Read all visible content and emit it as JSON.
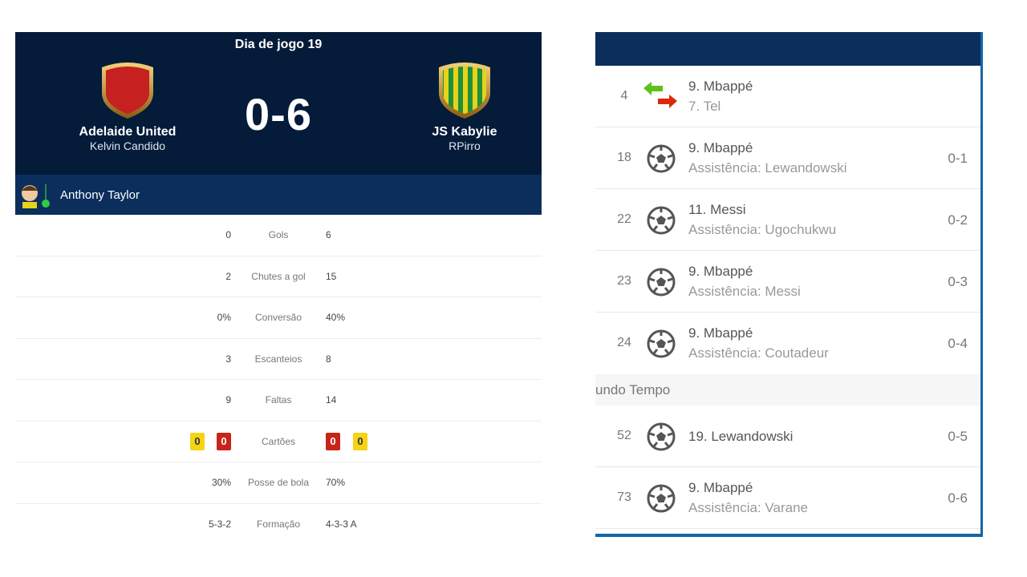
{
  "header": {
    "matchday": "Dia de jogo  19",
    "score": "0-6",
    "home": {
      "name": "Adelaide United",
      "manager": "Kelvin Candido",
      "crest_color": "#c62020"
    },
    "away": {
      "name": "JS Kabylie",
      "manager": "RPirro",
      "crest_colors": [
        "#e6d31a",
        "#1f8f3a"
      ]
    }
  },
  "referee": {
    "name": "Anthony Taylor"
  },
  "stats": [
    {
      "home": "0",
      "label": "Gols",
      "away": "6"
    },
    {
      "home": "2",
      "label": "Chutes a gol",
      "away": "15"
    },
    {
      "home": "0%",
      "label": "Conversão",
      "away": "40%"
    },
    {
      "home": "3",
      "label": "Escanteios",
      "away": "8"
    },
    {
      "home": "9",
      "label": "Faltas",
      "away": "14"
    },
    {
      "label": "Cartões",
      "home_yellow": "0",
      "home_red": "0",
      "away_red": "0",
      "away_yellow": "0"
    },
    {
      "home": "30%",
      "label": "Posse de bola",
      "away": "70%"
    },
    {
      "home": "5-3-2",
      "label": "Formação",
      "away": "4-3-3 A"
    }
  ],
  "events": [
    {
      "minute": "4",
      "type": "substitution",
      "in": "9. Mbappé",
      "out": "7. Tel"
    },
    {
      "minute": "18",
      "type": "goal",
      "player": "9. Mbappé",
      "assist": "Assistência: Lewandowski",
      "score": "0-1"
    },
    {
      "minute": "22",
      "type": "goal",
      "player": "11. Messi",
      "assist": "Assistência: Ugochukwu",
      "score": "0-2"
    },
    {
      "minute": "23",
      "type": "goal",
      "player": "9. Mbappé",
      "assist": "Assistência: Messi",
      "score": "0-3"
    },
    {
      "minute": "24",
      "type": "goal",
      "player": "9. Mbappé",
      "assist": "Assistência: Coutadeur",
      "score": "0-4"
    }
  ],
  "section": "undo Tempo",
  "events2": [
    {
      "minute": "52",
      "type": "goal",
      "player": "19. Lewandowski",
      "score": "0-5"
    },
    {
      "minute": "73",
      "type": "goal",
      "player": "9. Mbappé",
      "assist": "Assistência: Varane",
      "score": "0-6"
    }
  ]
}
